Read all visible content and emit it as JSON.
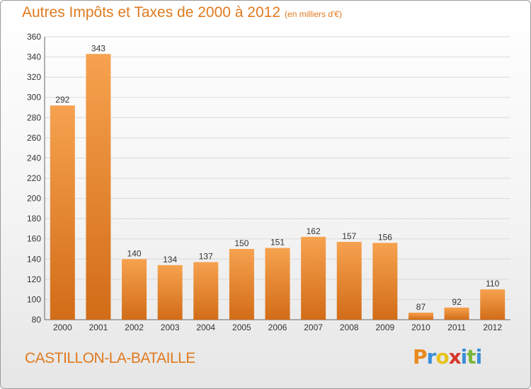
{
  "header": {
    "title": "Autres Impôts et Taxes de 2000 à 2012",
    "unit": "(en milliers d'€)"
  },
  "footer": {
    "commune": "CASTILLON-LA-BATAILLE",
    "logo_letters": [
      "P",
      "r",
      "o",
      "x",
      "i",
      "t",
      "i"
    ]
  },
  "colors": {
    "accent": "#e07a1e",
    "bar_top": "#f6a24f",
    "bar_bottom": "#d26c17",
    "logo": [
      "#e8891e",
      "#3a8fd8",
      "#e8c21e",
      "#d8362b",
      "#3a8fd8",
      "#7ab83a",
      "#3a8fd8"
    ]
  },
  "chart_data": {
    "type": "bar",
    "title": "Autres Impôts et Taxes de 2000 à 2012",
    "subtitle": "(en milliers d'€)",
    "xlabel": "",
    "ylabel": "",
    "categories": [
      "2000",
      "2001",
      "2002",
      "2003",
      "2004",
      "2005",
      "2006",
      "2007",
      "2008",
      "2009",
      "2010",
      "2011",
      "2012"
    ],
    "values": [
      292,
      343,
      140,
      134,
      137,
      150,
      151,
      162,
      157,
      156,
      87,
      92,
      110
    ],
    "ylim": [
      80,
      360
    ],
    "yticks": [
      80,
      100,
      120,
      140,
      160,
      180,
      200,
      220,
      240,
      260,
      280,
      300,
      320,
      340,
      360
    ],
    "grid": true,
    "legend": "none"
  }
}
